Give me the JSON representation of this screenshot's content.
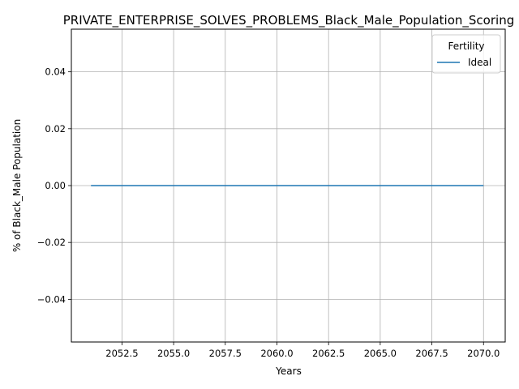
{
  "chart_data": {
    "type": "line",
    "title": "PRIVATE_ENTERPRISE_SOLVES_PROBLEMS_Black_Male_Population_Scoring",
    "xlabel": "Years",
    "ylabel": "% of Black_Male Population",
    "xlim": [
      2050.05,
      2071.05
    ],
    "ylim": [
      -0.055,
      0.055
    ],
    "x_ticks": [
      2052.5,
      2055.0,
      2057.5,
      2060.0,
      2062.5,
      2065.0,
      2067.5,
      2070.0
    ],
    "x_tick_labels": [
      "2052.5",
      "2055.0",
      "2057.5",
      "2060.0",
      "2062.5",
      "2065.0",
      "2067.5",
      "2070.0"
    ],
    "y_ticks": [
      -0.04,
      -0.02,
      0.0,
      0.02,
      0.04
    ],
    "y_tick_labels": [
      "−0.04",
      "−0.02",
      "0.00",
      "0.02",
      "0.04"
    ],
    "grid": true,
    "legend": {
      "title": "Fertility",
      "placement": "top-right"
    },
    "series": [
      {
        "name": "Ideal",
        "color": "#1f77b4",
        "x": [
          2051,
          2052,
          2053,
          2054,
          2055,
          2056,
          2057,
          2058,
          2059,
          2060,
          2061,
          2062,
          2063,
          2064,
          2065,
          2066,
          2067,
          2068,
          2069,
          2070
        ],
        "y": [
          0,
          0,
          0,
          0,
          0,
          0,
          0,
          0,
          0,
          0,
          0,
          0,
          0,
          0,
          0,
          0,
          0,
          0,
          0,
          0
        ]
      }
    ]
  }
}
